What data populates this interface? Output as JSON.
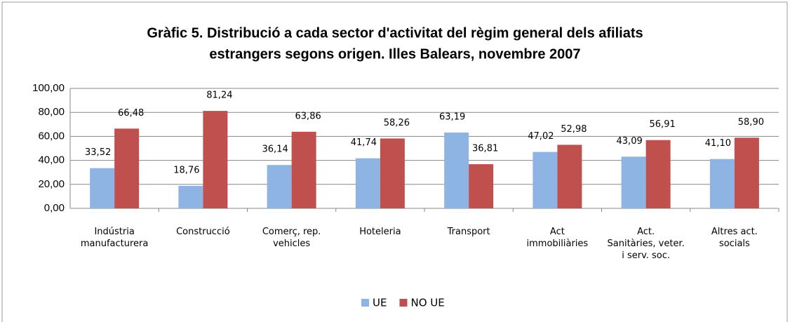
{
  "chart_data": {
    "type": "bar",
    "title": [
      "Gràfic 5. Distribució a cada sector d'activitat del règim general dels afiliats",
      "estrangers segons origen. Illes Balears, novembre 2007"
    ],
    "categories": [
      [
        "Indústria",
        "manufacturera"
      ],
      [
        "Construcció"
      ],
      [
        "Comerç, rep.",
        "vehicles"
      ],
      [
        "Hoteleria"
      ],
      [
        "Transport"
      ],
      [
        "Act",
        "immobiliàries"
      ],
      [
        "Act.",
        "Sanitàries, veter.",
        "i serv. soc."
      ],
      [
        "Altres act.",
        "socials"
      ]
    ],
    "series": [
      {
        "name": "UE",
        "color": "#8db4e2",
        "values": [
          33.52,
          18.76,
          36.14,
          41.74,
          63.19,
          47.02,
          43.09,
          41.1
        ],
        "value_labels": [
          "33,52",
          "18,76",
          "36,14",
          "41,74",
          "63,19",
          "47,02",
          "43,09",
          "41,10"
        ]
      },
      {
        "name": "NO UE",
        "color": "#c0504d",
        "values": [
          66.48,
          81.24,
          63.86,
          58.26,
          36.81,
          52.98,
          56.91,
          58.9
        ],
        "value_labels": [
          "66,48",
          "81,24",
          "63,86",
          "58,26",
          "36,81",
          "52,98",
          "56,91",
          "58,90"
        ]
      }
    ],
    "ylim": [
      0,
      100
    ],
    "yticks": [
      {
        "value": 0,
        "label": "0,00"
      },
      {
        "value": 20,
        "label": "20,00"
      },
      {
        "value": 40,
        "label": "40,00"
      },
      {
        "value": 60,
        "label": "60,00"
      },
      {
        "value": 80,
        "label": "80,00"
      },
      {
        "value": 100,
        "label": "100,00"
      }
    ],
    "grid": true,
    "legend": "bottom"
  }
}
